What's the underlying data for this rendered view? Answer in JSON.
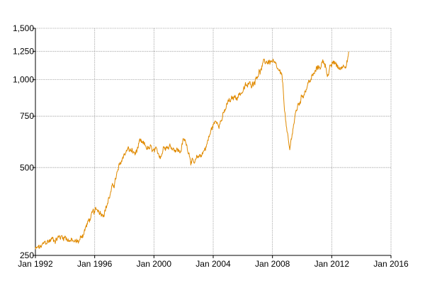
{
  "chart_data": {
    "type": "line",
    "title": "",
    "xlabel": "",
    "ylabel": "",
    "y_scale": "log",
    "xlim": [
      "1992-01-01",
      "2016-01-01"
    ],
    "ylim": [
      250,
      1500
    ],
    "grid": true,
    "line_color": "#e08a00",
    "x_ticks": [
      {
        "value": "1992-01-01",
        "label": "Jan 1992"
      },
      {
        "value": "1996-01-01",
        "label": "Jan 1996"
      },
      {
        "value": "2000-01-01",
        "label": "Jan 2000"
      },
      {
        "value": "2004-01-01",
        "label": "Jan 2004"
      },
      {
        "value": "2008-01-01",
        "label": "Jan 2008"
      },
      {
        "value": "2012-01-01",
        "label": "Jan 2012"
      },
      {
        "value": "2016-01-01",
        "label": "Jan 2016"
      }
    ],
    "y_ticks": [
      {
        "value": 250,
        "label": "250"
      },
      {
        "value": 500,
        "label": "500"
      },
      {
        "value": 750,
        "label": "750"
      },
      {
        "value": 1000,
        "label": "1,000"
      },
      {
        "value": 1250,
        "label": "1,250"
      },
      {
        "value": 1500,
        "label": "1,500"
      }
    ],
    "series": [
      {
        "x": [
          "1992-01-01",
          "1992-04-01",
          "1992-07-01",
          "1992-10-01",
          "1993-01-01",
          "1993-04-01",
          "1993-07-01",
          "1993-10-01",
          "1994-01-01",
          "1994-04-01",
          "1994-07-01",
          "1994-10-01",
          "1995-01-01",
          "1995-04-01",
          "1995-07-01",
          "1995-10-01",
          "1996-01-01",
          "1996-04-01",
          "1996-07-01",
          "1996-10-01",
          "1997-01-01",
          "1997-04-01",
          "1997-07-01",
          "1997-10-01",
          "1998-01-01",
          "1998-04-01",
          "1998-07-01",
          "1998-10-01",
          "1999-01-01",
          "1999-04-01",
          "1999-07-01",
          "1999-10-01",
          "2000-01-01",
          "2000-04-01",
          "2000-07-01",
          "2000-10-01",
          "2001-01-01",
          "2001-04-01",
          "2001-07-01",
          "2001-10-01",
          "2002-01-01",
          "2002-04-01",
          "2002-07-01",
          "2002-10-01",
          "2003-01-01",
          "2003-04-01",
          "2003-07-01",
          "2003-10-01",
          "2004-01-01",
          "2004-04-01",
          "2004-07-01",
          "2004-10-01",
          "2005-01-01",
          "2005-04-01",
          "2005-07-01",
          "2005-10-01",
          "2006-01-01",
          "2006-04-01",
          "2006-07-01",
          "2006-10-01",
          "2007-01-01",
          "2007-04-01",
          "2007-07-01",
          "2007-10-01",
          "2008-01-01",
          "2008-04-01",
          "2008-07-01",
          "2008-09-01",
          "2008-11-01",
          "2009-01-01",
          "2009-03-01",
          "2009-05-01",
          "2009-07-01",
          "2009-10-01",
          "2010-01-01",
          "2010-04-01",
          "2010-07-01",
          "2010-10-01",
          "2011-01-01",
          "2011-04-01",
          "2011-07-01",
          "2011-10-01",
          "2012-01-01",
          "2012-04-01",
          "2012-07-01",
          "2012-10-01",
          "2013-01-01",
          "2013-03-01"
        ],
        "values": [
          262,
          264,
          268,
          276,
          282,
          286,
          288,
          290,
          292,
          285,
          278,
          276,
          282,
          300,
          320,
          338,
          348,
          358,
          352,
          366,
          400,
          430,
          470,
          510,
          560,
          580,
          565,
          555,
          600,
          590,
          585,
          575,
          560,
          550,
          560,
          610,
          595,
          590,
          585,
          565,
          620,
          595,
          540,
          505,
          540,
          560,
          590,
          640,
          700,
          720,
          730,
          765,
          830,
          845,
          875,
          895,
          920,
          945,
          955,
          995,
          1060,
          1090,
          1140,
          1160,
          1150,
          1080,
          1040,
          980,
          780,
          640,
          560,
          660,
          740,
          820,
          880,
          940,
          990,
          1030,
          1080,
          1120,
          1160,
          1050,
          1110,
          1140,
          1080,
          1120,
          1170,
          1240
        ],
        "noise_amplitude": 0.035
      }
    ]
  }
}
